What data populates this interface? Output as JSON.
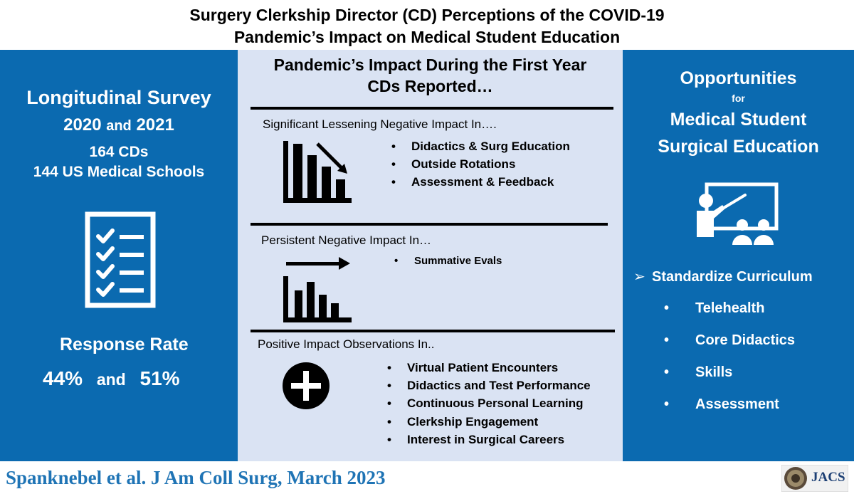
{
  "header": {
    "title_line1": "Surgery Clerkship Director (CD) Perceptions of the COVID-19",
    "title_line2": "Pandemic’s Impact on Medical Student Education"
  },
  "left": {
    "survey_title": "Longitudinal Survey",
    "years_a": "2020",
    "years_and": "and",
    "years_b": "2021",
    "cds": "164 CDs",
    "schools": "144 US Medical Schools",
    "icon": "checklist-icon",
    "response_label": "Response Rate",
    "rate_a": "44%",
    "rate_and": "and",
    "rate_b": "51%"
  },
  "middle": {
    "title_line1": "Pandemic’s Impact During the First Year",
    "title_line2": "CDs Reported…",
    "sections": [
      {
        "heading": "Significant Lessening Negative Impact In….",
        "icon": "decreasing-bar-chart-icon",
        "items": [
          "Didactics & Surg Education",
          "Outside Rotations",
          "Assessment & Feedback"
        ]
      },
      {
        "heading": "Persistent Negative Impact In…",
        "icon": "flat-bar-chart-icon",
        "items": [
          "Summative Evals"
        ]
      },
      {
        "heading": "Positive Impact Observations In..",
        "icon": "plus-circle-icon",
        "items": [
          "Virtual Patient Encounters",
          "Didactics and Test Performance",
          "Continuous Personal Learning",
          "Clerkship Engagement",
          "Interest in Surgical Careers"
        ]
      }
    ]
  },
  "right": {
    "title_line1": "Opportunities",
    "title_line2": "for",
    "title_line3": "Medical Student",
    "title_line4": "Surgical Education",
    "icon": "teacher-presentation-icon",
    "main_item": "Standardize Curriculum",
    "arrow": "➢",
    "items": [
      "Telehealth",
      "Core Didactics",
      "Skills",
      "Assessment"
    ]
  },
  "footer": {
    "citation": "Spanknebel et al. J Am Coll Surg, March 2023",
    "journal": "JACS"
  },
  "colors": {
    "blue": "#0b6ab0",
    "light_blue": "#dae3f3",
    "citation": "#1f74b5"
  }
}
